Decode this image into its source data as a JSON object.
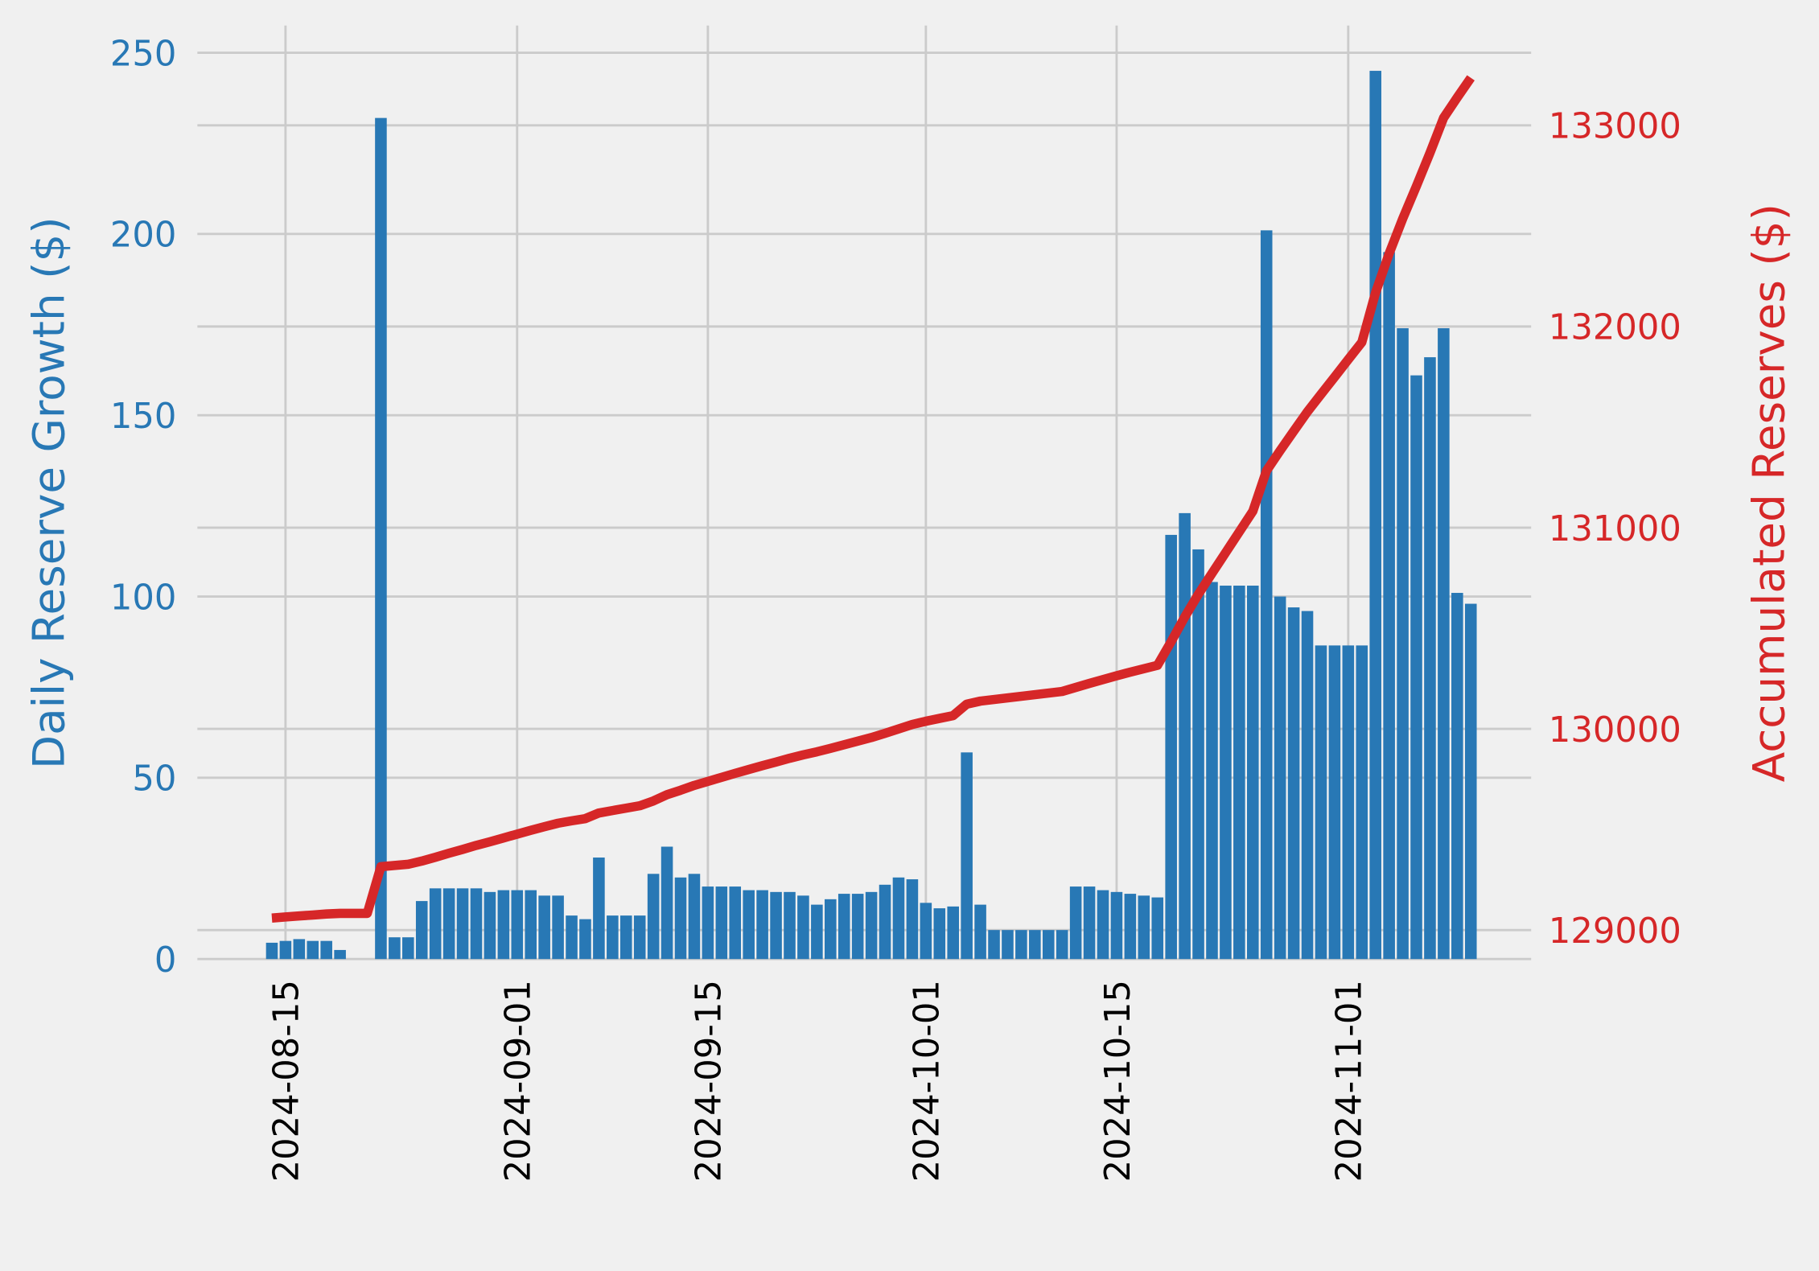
{
  "chart_data": {
    "type": "bar",
    "ylabel": "Daily Reserve Growth ($)",
    "y2label": "Accumulated Reserves ($)",
    "x": [
      "2024-08-14",
      "2024-08-15",
      "2024-08-16",
      "2024-08-17",
      "2024-08-18",
      "2024-08-19",
      "2024-08-20",
      "2024-08-21",
      "2024-08-22",
      "2024-08-23",
      "2024-08-24",
      "2024-08-25",
      "2024-08-26",
      "2024-08-27",
      "2024-08-28",
      "2024-08-29",
      "2024-08-30",
      "2024-08-31",
      "2024-09-01",
      "2024-09-02",
      "2024-09-03",
      "2024-09-04",
      "2024-09-05",
      "2024-09-06",
      "2024-09-07",
      "2024-09-08",
      "2024-09-09",
      "2024-09-10",
      "2024-09-11",
      "2024-09-12",
      "2024-09-13",
      "2024-09-14",
      "2024-09-15",
      "2024-09-16",
      "2024-09-17",
      "2024-09-18",
      "2024-09-19",
      "2024-09-20",
      "2024-09-21",
      "2024-09-22",
      "2024-09-23",
      "2024-09-24",
      "2024-09-25",
      "2024-09-26",
      "2024-09-27",
      "2024-09-28",
      "2024-09-29",
      "2024-09-30",
      "2024-10-01",
      "2024-10-02",
      "2024-10-03",
      "2024-10-04",
      "2024-10-05",
      "2024-10-06",
      "2024-10-07",
      "2024-10-08",
      "2024-10-09",
      "2024-10-10",
      "2024-10-11",
      "2024-10-12",
      "2024-10-13",
      "2024-10-14",
      "2024-10-15",
      "2024-10-16",
      "2024-10-17",
      "2024-10-18",
      "2024-10-19",
      "2024-10-20",
      "2024-10-21",
      "2024-10-22",
      "2024-10-23",
      "2024-10-24",
      "2024-10-25",
      "2024-10-26",
      "2024-10-27",
      "2024-10-28",
      "2024-10-29",
      "2024-10-30",
      "2024-10-31",
      "2024-11-01",
      "2024-11-02",
      "2024-11-03",
      "2024-11-04",
      "2024-11-05",
      "2024-11-06",
      "2024-11-07",
      "2024-11-08",
      "2024-11-09",
      "2024-11-10"
    ],
    "series": [
      {
        "type": "bar",
        "color": "#2878b5",
        "values": [
          4.5,
          5,
          5.5,
          5,
          5,
          2.5,
          0,
          0,
          232,
          6,
          6,
          16,
          19.5,
          19.5,
          19.5,
          19.5,
          18.5,
          19,
          19,
          19,
          17.5,
          17.5,
          12,
          11,
          28,
          12,
          12,
          12,
          23.5,
          31,
          22.5,
          23.5,
          20,
          20,
          20,
          19,
          19,
          18.5,
          18.5,
          17.5,
          15,
          16.5,
          18,
          18,
          18.5,
          20.5,
          22.5,
          22,
          15.5,
          14,
          14.5,
          57,
          15,
          8,
          8,
          8,
          8,
          8,
          8,
          20,
          20,
          19,
          18.5,
          18,
          17.5,
          17,
          117,
          123,
          113,
          104,
          103,
          103,
          103,
          201,
          100,
          97,
          96,
          86.5,
          86.5,
          86.5,
          86.5,
          245,
          195,
          174,
          161,
          166,
          174,
          101,
          98
        ]
      },
      {
        "type": "line",
        "axis": "y2",
        "color": "#d62728",
        "values": [
          129060,
          129065,
          129070,
          129075,
          129080,
          129083,
          129083,
          129083,
          129315,
          129321,
          129327,
          129343,
          129362,
          129382,
          129401,
          129421,
          129439,
          129458,
          129477,
          129496,
          129514,
          129531,
          129543,
          129554,
          129582,
          129594,
          129606,
          129618,
          129642,
          129673,
          129695,
          129719,
          129739,
          129759,
          129779,
          129798,
          129817,
          129835,
          129854,
          129871,
          129886,
          129903,
          129921,
          129939,
          129957,
          129978,
          130000,
          130022,
          130038,
          130052,
          130066,
          130123,
          130138,
          130146,
          130154,
          130162,
          130170,
          130178,
          130186,
          130206,
          130226,
          130245,
          130264,
          130282,
          130299,
          130316,
          130433,
          130556,
          130669,
          130773,
          130876,
          130979,
          131082,
          131283,
          131383,
          131480,
          131576,
          131663,
          131749,
          131836,
          131922,
          132167,
          132362,
          132536,
          132697,
          132863,
          133037,
          133138,
          133236
        ]
      }
    ],
    "xlim": [
      "2024-08-08",
      "2024-11-14"
    ],
    "xticks": [
      "2024-08-15",
      "2024-09-01",
      "2024-09-15",
      "2024-10-01",
      "2024-10-15",
      "2024-11-01"
    ],
    "ylim": [
      0,
      257.5
    ],
    "yticks": [
      0,
      50,
      100,
      150,
      200,
      250
    ],
    "y2lim": [
      128856,
      133496
    ],
    "y2ticks": [
      129000,
      130000,
      131000,
      132000,
      133000
    ],
    "grid": true
  }
}
